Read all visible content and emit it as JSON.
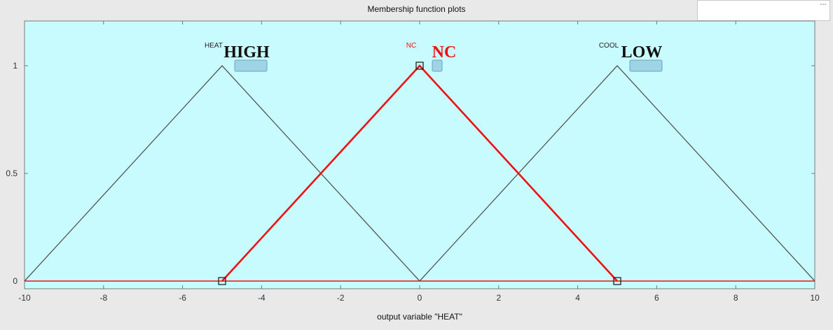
{
  "window": {
    "title": "Membership function plots",
    "corner_text": "---"
  },
  "colors": {
    "plot_bg": "#c8fbfd",
    "frame_bg": "#e9e9e9",
    "mf_line": "#555555",
    "selected_mf": "#ee1111",
    "big_label": "#111111"
  },
  "chart_data": {
    "type": "line",
    "xlabel": "output variable \"HEAT\"",
    "xlim": [
      -10,
      10
    ],
    "ylim": [
      0,
      1
    ],
    "xticks": [
      -10,
      -8,
      -6,
      -4,
      -2,
      0,
      2,
      4,
      6,
      8,
      10
    ],
    "yticks": [
      0,
      0.5,
      1
    ],
    "ytick_labels": [
      "0",
      "0.5",
      "1"
    ],
    "series": [
      {
        "name": "HEAT",
        "label": "HIGH",
        "x": [
          -10,
          -5,
          0
        ],
        "y": [
          0,
          1,
          0
        ],
        "selected": false
      },
      {
        "name": "NC",
        "label": "NC",
        "x": [
          -5,
          0,
          5
        ],
        "y": [
          0,
          1,
          0
        ],
        "selected": true
      },
      {
        "name": "COOL",
        "label": "LOW",
        "x": [
          0,
          5,
          10
        ],
        "y": [
          0,
          1,
          0
        ],
        "selected": false
      }
    ]
  }
}
